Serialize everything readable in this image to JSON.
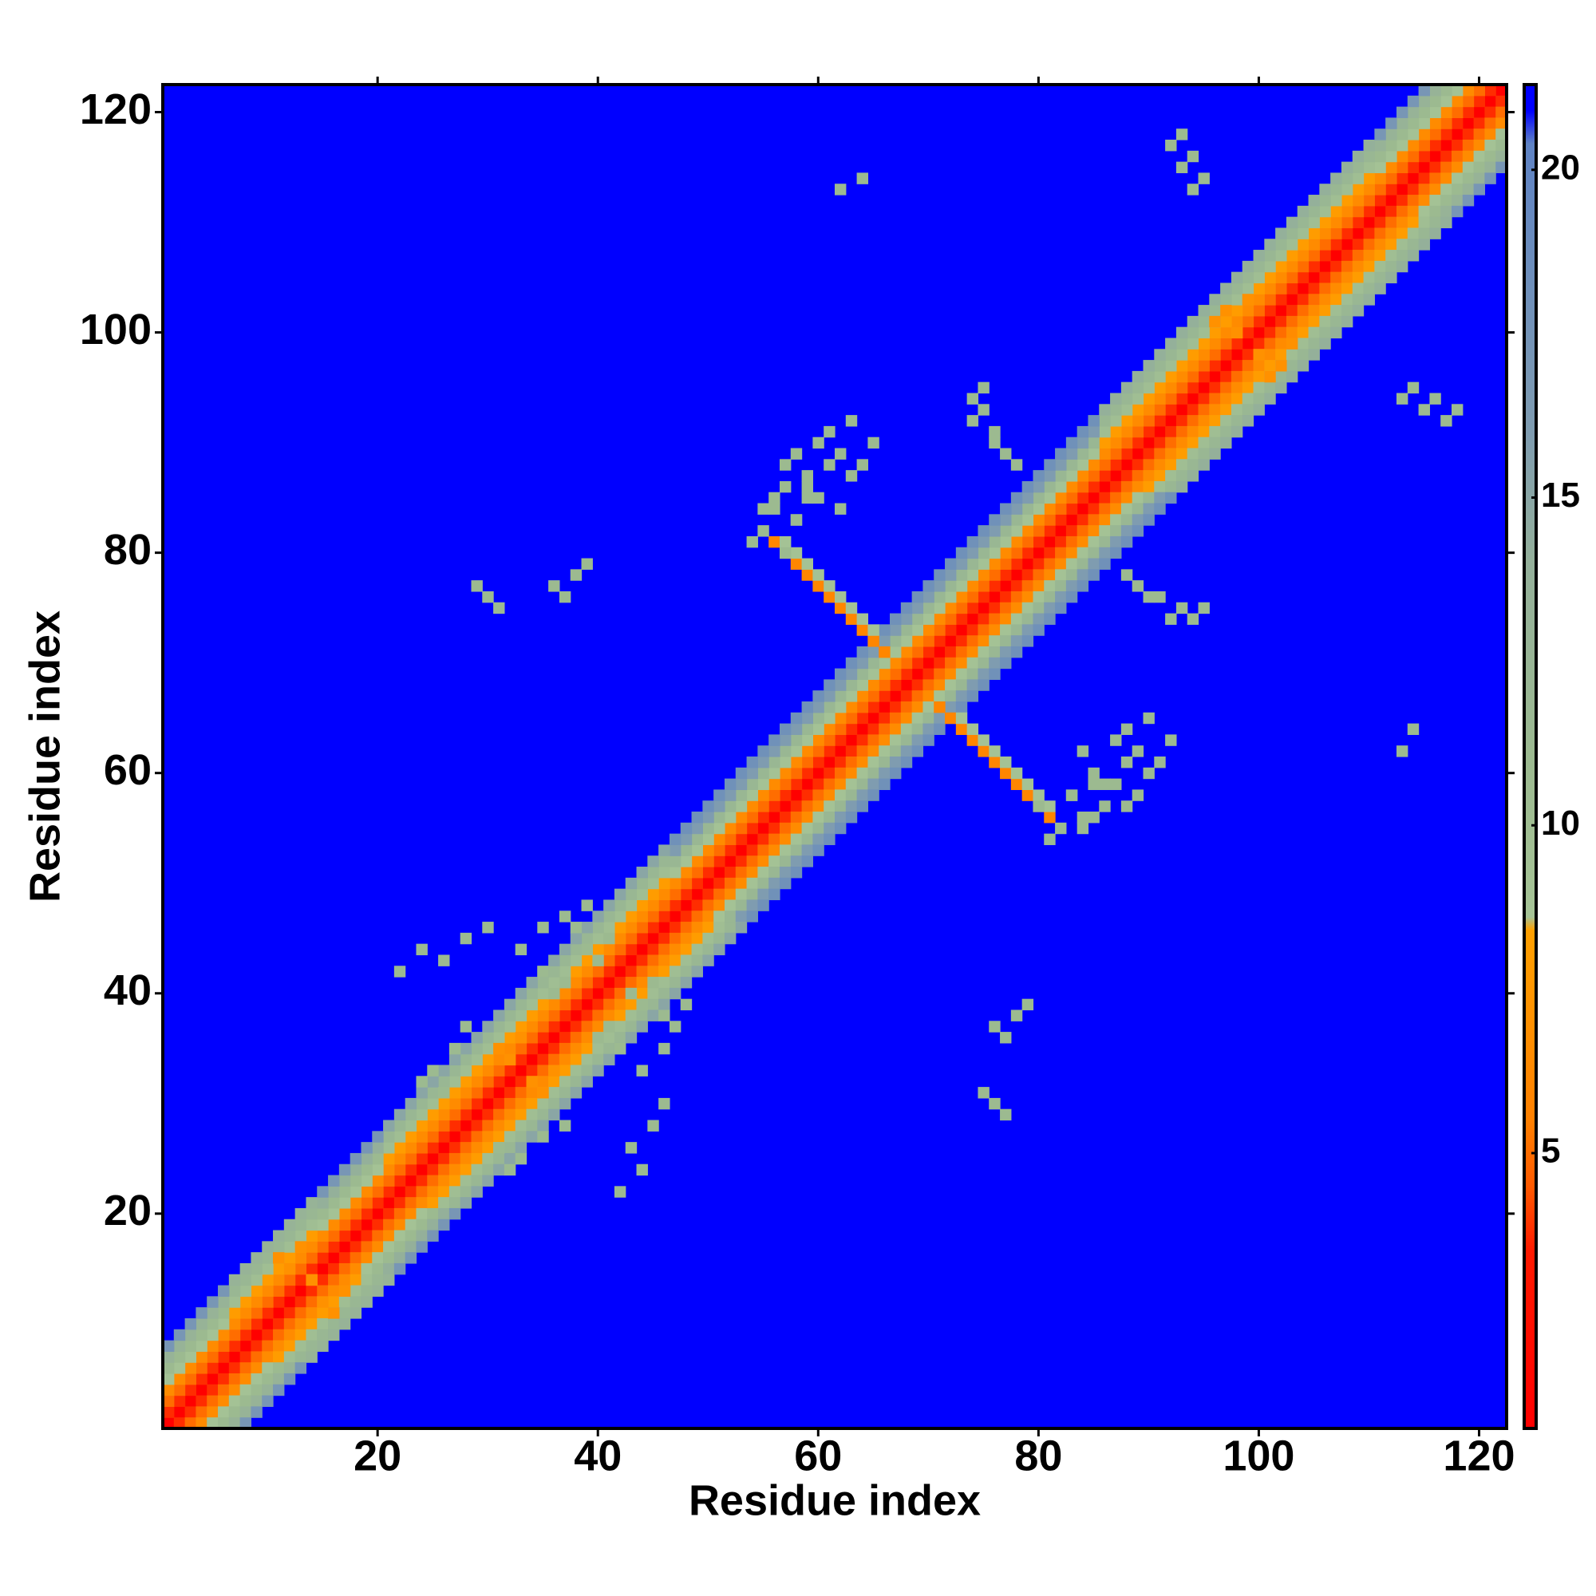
{
  "chart_data": {
    "type": "heatmap",
    "x_label": "Residue index",
    "y_label": "Residue index",
    "xlim": [
      0.5,
      122.5
    ],
    "ylim": [
      0.5,
      122.5
    ],
    "xticks": [
      20,
      40,
      60,
      80,
      100,
      120
    ],
    "yticks": [
      20,
      40,
      60,
      80,
      100,
      120
    ],
    "clim": [
      0.8,
      21.3
    ],
    "cticks": [
      5,
      10,
      15,
      20
    ],
    "colorscale": [
      [
        0.8,
        "#ff0000"
      ],
      [
        3.5,
        "#ff1a00"
      ],
      [
        4.5,
        "#ff5a00"
      ],
      [
        5.5,
        "#ff8000"
      ],
      [
        8.4,
        "#ffa000"
      ],
      [
        8.6,
        "#a6c496"
      ],
      [
        11,
        "#9cba90"
      ],
      [
        14,
        "#94b09a"
      ],
      [
        16,
        "#7f9cb0"
      ],
      [
        20.4,
        "#5f83c4"
      ],
      [
        20.9,
        "#0000ff"
      ],
      [
        21.3,
        "#0000ff"
      ]
    ],
    "diagonals": [
      {
        "offset": 0,
        "values": [
          0,
          0,
          0,
          0,
          0,
          0,
          0,
          0,
          0,
          0,
          0,
          0,
          0,
          0,
          0,
          0,
          0,
          0,
          0,
          0,
          0,
          0,
          0,
          0,
          0,
          0,
          0,
          0,
          0,
          0,
          0,
          0,
          0,
          0,
          0,
          0,
          0,
          0,
          0,
          0,
          0,
          0,
          0,
          0,
          0,
          0,
          0,
          0,
          0,
          0,
          0,
          0,
          0,
          0,
          0,
          0,
          0,
          0,
          0,
          0,
          0,
          0,
          0,
          0,
          0,
          0,
          0,
          0,
          0,
          0,
          0,
          0,
          0,
          0,
          0,
          0,
          0,
          0,
          0,
          0,
          0,
          0,
          0,
          0,
          0,
          0,
          0,
          0,
          0,
          0,
          0,
          0,
          0,
          0,
          0,
          0,
          0,
          0,
          0,
          0,
          0,
          0,
          0,
          0,
          0,
          0,
          0,
          0,
          0,
          0,
          0,
          0,
          0,
          0,
          0,
          0,
          0,
          0,
          0,
          0,
          0,
          0
        ]
      },
      {
        "offset": 1,
        "values": [
          3.8,
          3.8,
          3.8,
          3.8,
          3.8,
          3.8,
          3.8,
          3.8,
          3.8,
          3.8,
          3.8,
          3.8,
          3.8,
          3.8,
          3.8,
          3.8,
          3.8,
          3.8,
          3.8,
          3.8,
          3.8,
          3.8,
          3.8,
          3.8,
          3.8,
          3.8,
          3.8,
          3.8,
          3.8,
          3.8,
          3.8,
          3.8,
          3.8,
          3.8,
          3.8,
          3.8,
          3.8,
          3.8,
          3.8,
          3.8,
          3.8,
          3.8,
          3.8,
          3.8,
          3.8,
          3.8,
          3.8,
          3.8,
          3.8,
          3.8,
          3.8,
          3.8,
          3.8,
          3.8,
          3.8,
          3.8,
          3.8,
          3.8,
          3.8,
          3.8,
          3.8,
          3.8,
          3.8,
          3.8,
          3.8,
          3.8,
          3.8,
          3.8,
          3.8,
          3.8,
          3.8,
          3.8,
          3.8,
          3.8,
          3.8,
          3.8,
          3.8,
          3.8,
          3.8,
          3.8,
          3.8,
          3.8,
          3.8,
          3.8,
          3.8,
          3.8,
          3.8,
          3.8,
          3.8,
          3.8,
          3.8,
          3.8,
          3.8,
          3.8,
          3.8,
          3.8,
          3.8,
          3.8,
          3.8,
          3.8,
          3.8,
          3.8,
          3.8,
          3.8,
          3.8,
          3.8,
          3.8,
          3.8,
          3.8,
          3.8,
          3.8,
          3.8,
          3.8,
          3.8,
          3.8,
          3.8,
          3.8,
          3.8,
          3.8,
          3.8,
          3.8
        ]
      },
      {
        "offset": 2,
        "values": [
          5,
          5,
          5,
          5,
          5,
          5,
          5,
          5,
          5,
          5,
          5,
          5,
          5,
          5,
          5,
          5,
          5,
          5,
          5,
          5,
          5,
          5,
          5,
          5,
          5,
          5,
          5,
          5,
          5,
          5,
          5,
          5,
          5,
          5,
          5,
          5,
          5,
          5,
          5,
          5,
          5,
          5,
          5,
          5,
          5,
          5,
          5,
          5,
          5,
          5,
          5,
          5,
          5,
          5,
          5,
          5,
          5,
          5,
          5,
          5,
          5,
          5,
          5,
          5,
          5,
          5,
          5,
          5,
          5,
          5,
          5,
          5,
          5,
          5,
          5,
          5,
          5,
          5,
          5,
          5,
          5,
          5,
          5,
          5,
          5,
          5,
          5,
          5,
          5,
          5,
          5,
          5,
          5,
          5,
          5,
          5,
          5,
          5,
          5,
          5,
          5,
          5,
          5,
          5,
          5,
          5,
          5,
          5,
          5,
          5,
          5,
          5,
          5,
          5,
          5,
          5,
          5,
          5,
          5,
          5
        ]
      },
      {
        "offset": 3,
        "values": [
          6.5,
          6.5,
          6.5,
          6.5,
          6.5,
          6.5,
          6.5,
          6.5,
          6.5,
          6.5,
          6.5,
          6.5,
          6.5,
          6.5,
          6.5,
          6.5,
          6.5,
          6.5,
          6.5,
          6.5,
          6.5,
          6.5,
          6.5,
          6.5,
          6.5,
          6.5,
          6.5,
          6.5,
          6.5,
          6.5,
          6.5,
          6.5,
          6.5,
          6.5,
          6.5,
          6.5,
          6.5,
          6.5,
          6.5,
          6.5,
          6.5,
          6.5,
          6.5,
          6.5,
          6.5,
          6.5,
          6.5,
          6.5,
          6.5,
          6.5,
          6.5,
          6.5,
          6.5,
          6.5,
          6.5,
          6.5,
          6.5,
          6.5,
          6.5,
          6.5,
          6.5,
          6.5,
          6.5,
          6.5,
          6.5,
          6.5,
          6.5,
          6.5,
          6.5,
          6.5,
          6.5,
          6.5,
          6.5,
          6.5,
          6.5,
          6.5,
          6.5,
          6.5,
          6.5,
          6.5,
          6.5,
          6.5,
          6.5,
          6.5,
          6.5,
          6.5,
          6.5,
          6.5,
          6.5,
          6.5,
          6.5,
          6.5,
          6.5,
          6.5,
          6.5,
          6.5,
          6.5,
          6.5,
          6.5,
          6.5,
          6.5,
          6.5,
          6.5,
          6.5,
          6.5,
          6.5,
          6.5,
          6.5,
          6.5,
          6.5,
          6.5,
          6.5,
          6.5,
          6.5,
          6.5,
          6.5,
          6.5,
          6.5,
          6.5
        ]
      },
      {
        "offset": 4,
        "values": [
          9,
          9,
          9,
          9,
          9,
          9,
          8,
          8,
          8,
          8,
          8,
          8,
          8,
          8,
          9,
          9,
          9,
          9,
          9,
          9,
          8,
          8,
          8,
          8,
          8,
          8,
          8,
          8,
          8,
          8,
          8,
          8,
          8,
          8,
          8,
          8,
          8,
          8,
          8,
          8,
          8,
          8,
          8,
          8,
          8,
          8,
          9,
          9,
          9,
          9,
          9,
          9,
          9,
          9,
          9,
          9,
          9,
          9,
          9,
          9,
          9,
          9,
          9,
          9,
          9,
          9,
          9,
          9,
          9,
          9,
          9,
          9,
          9,
          9,
          9,
          9,
          9,
          9,
          9,
          9,
          9,
          9,
          9,
          9,
          9,
          8,
          8,
          8,
          8,
          8,
          8,
          8,
          8,
          8,
          8,
          8,
          8,
          8,
          8,
          8,
          8,
          8,
          8,
          8,
          8,
          8,
          8,
          8,
          8,
          8,
          9,
          9,
          9,
          9,
          9,
          9,
          9,
          9
        ]
      },
      {
        "offset": 5,
        "values": [
          11,
          11,
          11,
          11,
          11,
          11,
          10,
          10,
          10,
          10,
          10,
          10,
          10,
          10,
          11,
          11,
          11,
          11,
          11,
          11,
          10,
          10,
          10,
          10,
          10,
          10,
          10,
          10,
          10,
          10,
          10,
          10,
          10,
          10,
          10,
          10,
          10,
          10,
          10,
          10,
          10,
          10,
          10,
          10,
          10,
          10,
          12,
          12,
          12,
          12,
          12,
          12,
          12,
          12,
          12,
          12,
          12,
          12,
          12,
          12,
          12,
          12,
          12,
          12,
          12,
          12,
          12,
          12,
          12,
          12,
          12,
          12,
          12,
          12,
          12,
          12,
          12,
          12,
          12,
          12,
          12,
          12,
          12,
          12,
          12,
          10,
          10,
          10,
          10,
          10,
          10,
          10,
          10,
          10,
          10,
          10,
          10,
          10,
          10,
          10,
          10,
          10,
          10,
          10,
          10,
          10,
          10,
          10,
          10,
          10,
          11,
          11,
          11,
          11,
          11,
          11,
          11
        ]
      },
      {
        "offset": 6,
        "values": [
          13,
          13,
          13,
          13,
          13,
          13,
          12,
          12,
          12,
          12,
          12,
          12,
          12,
          12,
          14,
          14,
          14,
          14,
          14,
          14,
          12,
          12,
          12,
          12,
          12,
          12,
          12,
          12,
          12,
          12,
          12,
          12,
          12,
          12,
          12,
          12,
          12,
          12,
          12,
          12,
          12,
          12,
          12,
          12,
          12,
          12,
          16,
          16,
          16,
          16,
          16,
          16,
          16,
          16,
          16,
          16,
          16,
          16,
          16,
          16,
          16,
          16,
          16,
          16,
          16,
          16,
          16,
          16,
          16,
          16,
          16,
          16,
          16,
          16,
          16,
          16,
          16,
          16,
          16,
          16,
          16,
          16,
          16,
          16,
          16,
          12,
          12,
          12,
          12,
          12,
          12,
          12,
          12,
          12,
          12,
          12,
          12,
          12,
          12,
          12,
          12,
          12,
          12,
          12,
          12,
          12,
          12,
          12,
          12,
          12,
          13,
          13,
          13,
          13,
          13,
          13
        ]
      },
      {
        "offset": 7,
        "values": [
          17,
          17,
          17,
          17,
          17,
          17,
          13,
          13,
          13,
          13,
          13,
          13,
          13,
          13,
          17,
          17,
          17,
          17,
          17,
          17,
          15,
          15,
          15,
          15,
          15,
          15,
          15,
          15,
          15,
          15,
          15,
          15,
          15,
          15,
          15,
          15,
          15,
          15,
          15,
          15,
          15,
          15,
          15,
          15,
          15,
          15,
          18,
          18,
          18,
          18,
          18,
          18,
          18,
          18,
          18,
          18,
          18,
          18,
          18,
          18,
          18,
          18,
          18,
          18,
          18,
          18,
          18,
          18,
          18,
          18,
          18,
          18,
          18,
          18,
          18,
          18,
          18,
          18,
          18,
          18,
          18,
          18,
          18,
          18,
          18,
          14,
          14,
          14,
          14,
          14,
          14,
          14,
          14,
          14,
          14,
          14,
          14,
          14,
          14,
          14,
          14,
          14,
          14,
          14,
          14,
          14,
          14,
          14,
          14,
          14,
          17,
          17,
          17,
          17,
          17
        ]
      }
    ],
    "cells": {
      "x": [
        56,
        57,
        58,
        59,
        60,
        61,
        62,
        63,
        64,
        65,
        66,
        57,
        58,
        59,
        60,
        61,
        62,
        63,
        64,
        65,
        11,
        12,
        13,
        14,
        31,
        32,
        33,
        96,
        97,
        98,
        99,
        55,
        56,
        57,
        58,
        59,
        60,
        61,
        62,
        57,
        58,
        59,
        60,
        74,
        75,
        76,
        77,
        78,
        74,
        75,
        76,
        43,
        44,
        45,
        46,
        40,
        41,
        42,
        22,
        24,
        26,
        28,
        30,
        33,
        35,
        37,
        39,
        31,
        32,
        33,
        35,
        37,
        76,
        77,
        78,
        79,
        75,
        76,
        77,
        87,
        88,
        89,
        90,
        91,
        92,
        62,
        64,
        113,
        114,
        115,
        116,
        117,
        118,
        80,
        82,
        84,
        81,
        83,
        85
      ],
      "y": [
        81,
        80,
        79,
        78,
        77,
        76,
        75,
        74,
        73,
        72,
        71,
        81,
        80,
        79,
        78,
        77,
        76,
        75,
        74,
        73,
        16,
        15,
        17,
        14,
        35,
        34,
        36,
        101,
        102,
        100,
        103,
        84,
        85,
        86,
        83,
        87,
        85,
        88,
        84,
        88,
        89,
        86,
        90,
        92,
        93,
        91,
        89,
        88,
        94,
        95,
        90,
        40,
        39,
        41,
        38,
        36,
        37,
        35,
        42,
        44,
        43,
        45,
        46,
        44,
        46,
        47,
        48,
        26,
        24,
        25,
        27,
        28,
        37,
        36,
        38,
        39,
        31,
        30,
        29,
        63,
        64,
        62,
        65,
        61,
        63,
        113,
        114,
        94,
        95,
        93,
        94,
        92,
        93,
        57,
        55,
        56,
        54,
        58,
        59
      ],
      "values": [
        6,
        6,
        6,
        6,
        6,
        6,
        6,
        6,
        6,
        6,
        6,
        9,
        9,
        9,
        9,
        9,
        9,
        9,
        9,
        9,
        7,
        7,
        7,
        7,
        7,
        7,
        7,
        7,
        7,
        7,
        7,
        11,
        11,
        11,
        11,
        11,
        11,
        11,
        11,
        11,
        11,
        11,
        11,
        11,
        11,
        11,
        11,
        11,
        11,
        11,
        11,
        11,
        11,
        11,
        11,
        11,
        11,
        11,
        11,
        11,
        11,
        11,
        11,
        11,
        11,
        11,
        11,
        11,
        11,
        11,
        11,
        11,
        11,
        11,
        11,
        11,
        11,
        11,
        11,
        11,
        11,
        11,
        11,
        11,
        11,
        11,
        11,
        11,
        11,
        11,
        11,
        11,
        11,
        11,
        11,
        11,
        11,
        11,
        11
      ]
    }
  }
}
